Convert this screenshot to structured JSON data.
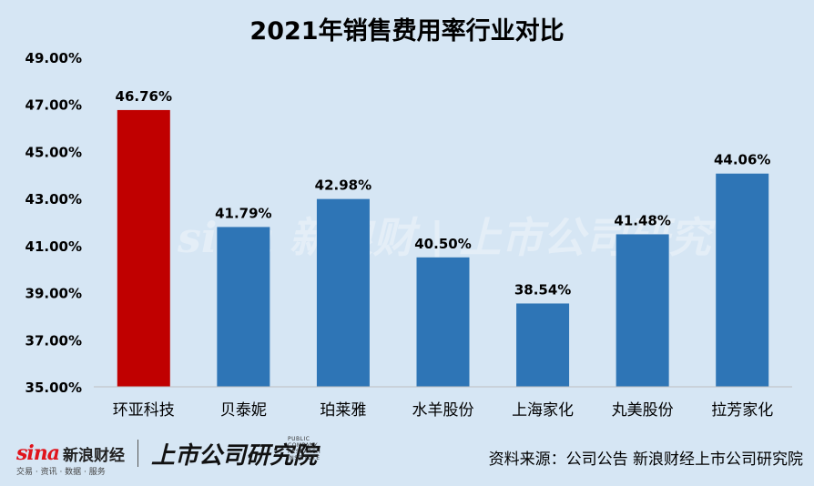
{
  "chart_data": {
    "type": "bar",
    "title": "2021年销售费用率行业对比",
    "categories": [
      "环亚科技",
      "贝泰妮",
      "珀莱雅",
      "水羊股份",
      "上海家化",
      "丸美股份",
      "拉芳家化"
    ],
    "values": [
      46.76,
      41.79,
      42.98,
      40.5,
      38.54,
      41.48,
      44.06
    ],
    "value_labels": [
      "46.76%",
      "41.79%",
      "42.98%",
      "40.50%",
      "38.54%",
      "41.48%",
      "44.06%"
    ],
    "ylim": [
      35,
      49
    ],
    "yticks": [
      35,
      37,
      39,
      41,
      43,
      45,
      47,
      49
    ],
    "ytick_labels": [
      "35.00%",
      "37.00%",
      "39.00%",
      "41.00%",
      "43.00%",
      "45.00%",
      "47.00%",
      "49.00%"
    ],
    "grid": false,
    "colors": {
      "highlight": "#c00000",
      "default": "#2e75b6"
    },
    "highlight_index": 0
  },
  "footer": {
    "sina_logo": "sina",
    "sina_name": "新浪财经",
    "sina_sub": "交易 · 资讯 · 数据 · 服务",
    "institute": "上市公司研究院",
    "institute_sub": "PUBLIC COMPANY RESEARCH INSTITUTE",
    "source": "资料来源：公司公告 新浪财经上市公司研究院"
  }
}
